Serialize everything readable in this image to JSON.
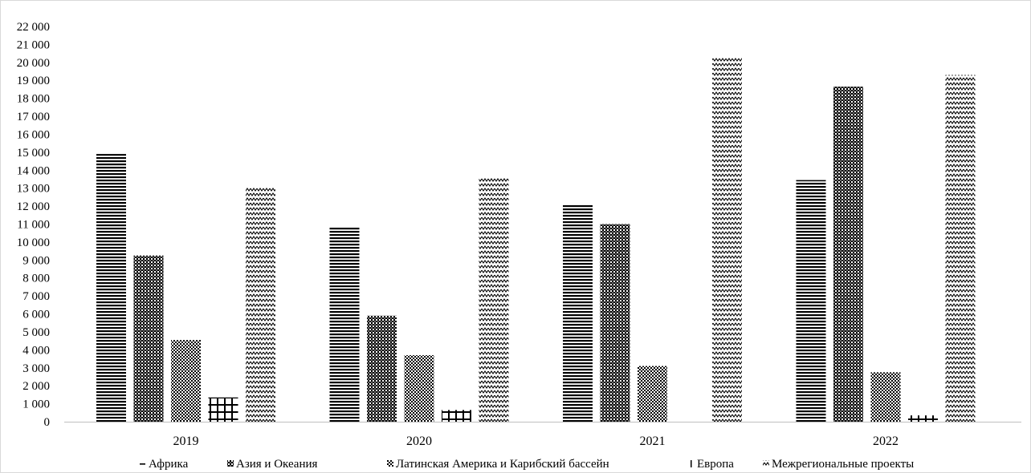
{
  "chart_data": {
    "type": "bar",
    "categories": [
      "2019",
      "2020",
      "2021",
      "2022"
    ],
    "series": [
      {
        "name": "Африка",
        "values": [
          14900,
          10850,
          12050,
          13450
        ],
        "pattern": "hlines"
      },
      {
        "name": "Азия и Океания",
        "values": [
          9250,
          5900,
          11000,
          18650
        ],
        "pattern": "checker"
      },
      {
        "name": "Латинская Америка и Карибский бассейн",
        "values": [
          4550,
          3700,
          3100,
          2750
        ],
        "pattern": "dots"
      },
      {
        "name": "Европа",
        "values": [
          1350,
          650,
          0,
          350
        ],
        "pattern": "grid"
      },
      {
        "name": "Межрегиональные проекты",
        "values": [
          13050,
          13600,
          20300,
          19300
        ],
        "pattern": "zigzag"
      }
    ],
    "y_ticks": [
      "0",
      "1 000",
      "2 000",
      "3 000",
      "4 000",
      "5 000",
      "6 000",
      "7 000",
      "8 000",
      "9 000",
      "10 000",
      "11 000",
      "12 000",
      "13 000",
      "14 000",
      "15 000",
      "16 000",
      "17 000",
      "18 000",
      "19 000",
      "20 000",
      "21 000",
      "22 000"
    ],
    "ylim": [
      0,
      22000
    ],
    "title": "",
    "xlabel": "",
    "ylabel": "",
    "legend_position": "bottom",
    "grid": false,
    "colors": {
      "ink": "#000000",
      "axis": "#bfbfbf",
      "border": "#d9d9d9"
    }
  }
}
